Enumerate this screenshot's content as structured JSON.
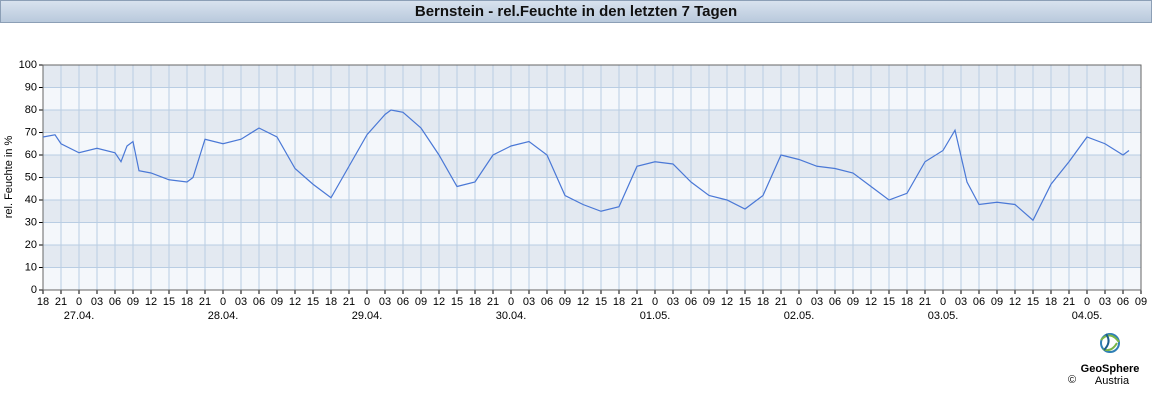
{
  "header": {
    "title": "Bernstein - rel.Feuchte in den letzten 7 Tagen"
  },
  "chart_data": {
    "type": "line",
    "ylabel": "rel. Feuchte in %",
    "color": "#4a78d6",
    "xlim": [
      0,
      183
    ],
    "ylim": [
      0,
      100
    ],
    "yticks": [
      0,
      10,
      20,
      30,
      40,
      50,
      60,
      70,
      80,
      90,
      100
    ],
    "grid": true,
    "xticks": [
      {
        "value": 0,
        "label": "18"
      },
      {
        "value": 3,
        "label": "21"
      },
      {
        "value": 6,
        "label": "0"
      },
      {
        "value": 9,
        "label": "03"
      },
      {
        "value": 12,
        "label": "06"
      },
      {
        "value": 15,
        "label": "09"
      },
      {
        "value": 18,
        "label": "12"
      },
      {
        "value": 21,
        "label": "15"
      },
      {
        "value": 24,
        "label": "18"
      },
      {
        "value": 27,
        "label": "21"
      },
      {
        "value": 30,
        "label": "0"
      },
      {
        "value": 33,
        "label": "03"
      },
      {
        "value": 36,
        "label": "06"
      },
      {
        "value": 39,
        "label": "09"
      },
      {
        "value": 42,
        "label": "12"
      },
      {
        "value": 45,
        "label": "15"
      },
      {
        "value": 48,
        "label": "18"
      },
      {
        "value": 51,
        "label": "21"
      },
      {
        "value": 54,
        "label": "0"
      },
      {
        "value": 57,
        "label": "03"
      },
      {
        "value": 60,
        "label": "06"
      },
      {
        "value": 63,
        "label": "09"
      },
      {
        "value": 66,
        "label": "12"
      },
      {
        "value": 69,
        "label": "15"
      },
      {
        "value": 72,
        "label": "18"
      },
      {
        "value": 75,
        "label": "21"
      },
      {
        "value": 78,
        "label": "0"
      },
      {
        "value": 81,
        "label": "03"
      },
      {
        "value": 84,
        "label": "06"
      },
      {
        "value": 87,
        "label": "09"
      },
      {
        "value": 90,
        "label": "12"
      },
      {
        "value": 93,
        "label": "15"
      },
      {
        "value": 96,
        "label": "18"
      },
      {
        "value": 99,
        "label": "21"
      },
      {
        "value": 102,
        "label": "0"
      },
      {
        "value": 105,
        "label": "03"
      },
      {
        "value": 108,
        "label": "06"
      },
      {
        "value": 111,
        "label": "09"
      },
      {
        "value": 114,
        "label": "12"
      },
      {
        "value": 117,
        "label": "15"
      },
      {
        "value": 120,
        "label": "18"
      },
      {
        "value": 123,
        "label": "21"
      },
      {
        "value": 126,
        "label": "0"
      },
      {
        "value": 129,
        "label": "03"
      },
      {
        "value": 132,
        "label": "06"
      },
      {
        "value": 135,
        "label": "09"
      },
      {
        "value": 138,
        "label": "12"
      },
      {
        "value": 141,
        "label": "15"
      },
      {
        "value": 144,
        "label": "18"
      },
      {
        "value": 147,
        "label": "21"
      },
      {
        "value": 150,
        "label": "0"
      },
      {
        "value": 153,
        "label": "03"
      },
      {
        "value": 156,
        "label": "06"
      },
      {
        "value": 159,
        "label": "09"
      },
      {
        "value": 162,
        "label": "12"
      },
      {
        "value": 165,
        "label": "15"
      },
      {
        "value": 168,
        "label": "18"
      },
      {
        "value": 171,
        "label": "21"
      },
      {
        "value": 174,
        "label": "0"
      },
      {
        "value": 177,
        "label": "03"
      },
      {
        "value": 180,
        "label": "06"
      },
      {
        "value": 183,
        "label": "09"
      }
    ],
    "date_labels": [
      {
        "value": 6,
        "label": "27.04."
      },
      {
        "value": 30,
        "label": "28.04."
      },
      {
        "value": 54,
        "label": "29.04."
      },
      {
        "value": 78,
        "label": "30.04."
      },
      {
        "value": 102,
        "label": "01.05."
      },
      {
        "value": 126,
        "label": "02.05."
      },
      {
        "value": 150,
        "label": "03.05."
      },
      {
        "value": 174,
        "label": "04.05."
      }
    ],
    "x": [
      0,
      2,
      3,
      6,
      9,
      12,
      13,
      14,
      15,
      16,
      18,
      21,
      24,
      25,
      27,
      30,
      33,
      36,
      39,
      42,
      45,
      48,
      51,
      54,
      57,
      58,
      60,
      63,
      66,
      69,
      72,
      75,
      78,
      81,
      84,
      87,
      90,
      93,
      96,
      99,
      102,
      105,
      108,
      111,
      114,
      117,
      120,
      123,
      126,
      129,
      132,
      135,
      138,
      141,
      144,
      147,
      150,
      152,
      154,
      156,
      159,
      162,
      165,
      168,
      171,
      174,
      177,
      180,
      181
    ],
    "values": [
      68,
      69,
      65,
      61,
      63,
      61,
      57,
      64,
      66,
      53,
      52,
      49,
      48,
      50,
      67,
      65,
      67,
      72,
      68,
      54,
      47,
      41,
      55,
      69,
      78,
      80,
      79,
      72,
      60,
      46,
      48,
      60,
      64,
      66,
      60,
      42,
      38,
      35,
      37,
      55,
      57,
      56,
      48,
      42,
      40,
      36,
      42,
      60,
      58,
      55,
      54,
      52,
      46,
      40,
      43,
      57,
      62,
      71,
      48,
      38,
      39,
      38,
      31,
      47,
      57,
      68,
      65,
      60,
      62
    ]
  },
  "logo": {
    "name": "GeoSphere",
    "sub": "Austria",
    "copyright": "©"
  }
}
